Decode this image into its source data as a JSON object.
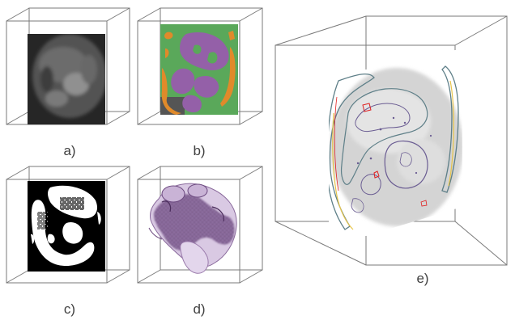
{
  "figure": {
    "panels": [
      {
        "id": "a",
        "label": "a)",
        "content": "grayscale-ct-slice"
      },
      {
        "id": "b",
        "label": "b)",
        "content": "segmentation-label-slice"
      },
      {
        "id": "c",
        "label": "c)",
        "content": "binary-mask-slice"
      },
      {
        "id": "d",
        "label": "d)",
        "content": "3d-volume-rendering"
      },
      {
        "id": "e",
        "label": "e)",
        "content": "contour-overlay-slice"
      }
    ],
    "colors": {
      "box_line": "#7a7a7a",
      "ct_dark": "#262626",
      "seg_green": "#5aa85a",
      "seg_purple": "#9460a8",
      "seg_orange": "#e08a2a",
      "mask_black": "#000000",
      "mask_white": "#ffffff",
      "volume_purple": "#6d4a80",
      "volume_light": "#d9c9e3",
      "contour_slate": "#5e7f88",
      "contour_purple": "#6a5c92",
      "contour_red": "#e02020",
      "contour_yellow": "#e6c44a",
      "overlay_gray": "#d4d4d4"
    }
  }
}
